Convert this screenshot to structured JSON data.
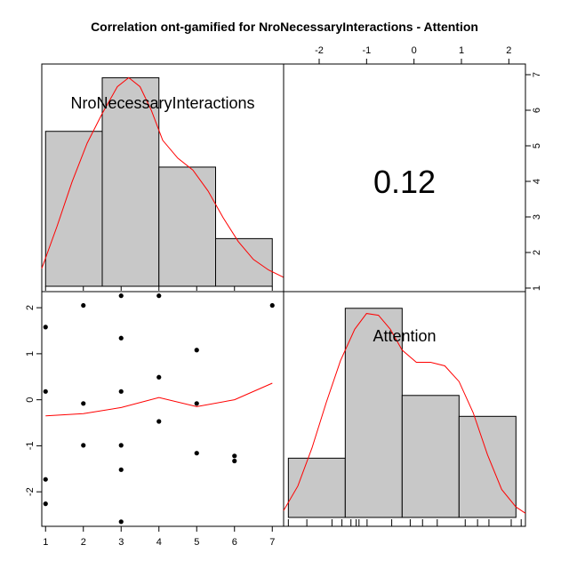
{
  "chart_data": {
    "type": "scatter",
    "title": "Correlation ont-gamified for NroNecessaryInteractions - Attention",
    "variables": [
      "NroNecessaryInteractions",
      "Attention"
    ],
    "correlation_label": "0.12",
    "x_ticks": [
      "1",
      "2",
      "3",
      "4",
      "5",
      "6",
      "7"
    ],
    "y_ticks": [
      "-2",
      "-1",
      "0",
      "1",
      "2"
    ],
    "top_ticks": [
      "-2",
      "-1",
      "0",
      "1",
      "2"
    ],
    "right_ticks": [
      "1",
      "2",
      "3",
      "4",
      "5",
      "6",
      "7"
    ],
    "xlim": [
      0.9,
      7.3
    ],
    "ylim": [
      -2.75,
      2.35
    ],
    "scatter_points": [
      {
        "x": 1,
        "y": 1.58
      },
      {
        "x": 1,
        "y": 0.18
      },
      {
        "x": 1,
        "y": -1.73
      },
      {
        "x": 1,
        "y": -2.26
      },
      {
        "x": 2,
        "y": 2.05
      },
      {
        "x": 2,
        "y": -0.08
      },
      {
        "x": 2,
        "y": -0.99
      },
      {
        "x": 3,
        "y": 2.26
      },
      {
        "x": 3,
        "y": 1.34
      },
      {
        "x": 3,
        "y": 0.18
      },
      {
        "x": 3,
        "y": -0.99
      },
      {
        "x": 3,
        "y": -1.52
      },
      {
        "x": 3,
        "y": -2.65
      },
      {
        "x": 4,
        "y": 2.26
      },
      {
        "x": 4,
        "y": 0.49
      },
      {
        "x": 4,
        "y": -0.47
      },
      {
        "x": 5,
        "y": 1.08
      },
      {
        "x": 5,
        "y": -0.08
      },
      {
        "x": 5,
        "y": -1.16
      },
      {
        "x": 6,
        "y": -1.22
      },
      {
        "x": 6,
        "y": -1.33
      },
      {
        "x": 7,
        "y": 2.05
      }
    ],
    "smooth_line": [
      {
        "x": 1,
        "y": -0.35
      },
      {
        "x": 2,
        "y": -0.3
      },
      {
        "x": 3,
        "y": -0.17
      },
      {
        "x": 4,
        "y": 0.05
      },
      {
        "x": 5,
        "y": -0.15
      },
      {
        "x": 6,
        "y": 0.0
      },
      {
        "x": 7,
        "y": 0.36
      }
    ],
    "hist1": {
      "breaks": [
        1,
        2.5,
        4,
        5.5,
        7
      ],
      "counts": [
        5.2,
        7.0,
        4.0,
        1.6
      ],
      "ylim": [
        0,
        7.4
      ],
      "density": [
        {
          "x": 0.9,
          "y": 0.6
        },
        {
          "x": 1.3,
          "y": 2.0
        },
        {
          "x": 1.7,
          "y": 3.5
        },
        {
          "x": 2.1,
          "y": 4.8
        },
        {
          "x": 2.5,
          "y": 5.8
        },
        {
          "x": 2.9,
          "y": 6.7
        },
        {
          "x": 3.2,
          "y": 7.0
        },
        {
          "x": 3.5,
          "y": 6.7
        },
        {
          "x": 3.8,
          "y": 5.9
        },
        {
          "x": 4.1,
          "y": 4.9
        },
        {
          "x": 4.5,
          "y": 4.3
        },
        {
          "x": 4.9,
          "y": 3.9
        },
        {
          "x": 5.3,
          "y": 3.2
        },
        {
          "x": 5.7,
          "y": 2.3
        },
        {
          "x": 6.1,
          "y": 1.5
        },
        {
          "x": 6.5,
          "y": 0.9
        },
        {
          "x": 6.9,
          "y": 0.55
        },
        {
          "x": 7.3,
          "y": 0.3
        }
      ],
      "rug": [
        1,
        2,
        3,
        4,
        5,
        6,
        7
      ]
    },
    "hist2": {
      "breaks": [
        -2.65,
        -1.45,
        -0.25,
        0.95,
        2.15
      ],
      "counts": [
        1.7,
        6.0,
        3.5,
        2.9
      ],
      "ylim": [
        0,
        6.3
      ],
      "density": [
        {
          "x": -2.75,
          "y": 0.2
        },
        {
          "x": -2.45,
          "y": 0.9
        },
        {
          "x": -2.15,
          "y": 2.0
        },
        {
          "x": -1.85,
          "y": 3.3
        },
        {
          "x": -1.55,
          "y": 4.5
        },
        {
          "x": -1.25,
          "y": 5.4
        },
        {
          "x": -1.0,
          "y": 5.85
        },
        {
          "x": -0.75,
          "y": 5.8
        },
        {
          "x": -0.5,
          "y": 5.4
        },
        {
          "x": -0.25,
          "y": 4.8
        },
        {
          "x": 0.05,
          "y": 4.45
        },
        {
          "x": 0.35,
          "y": 4.45
        },
        {
          "x": 0.65,
          "y": 4.35
        },
        {
          "x": 0.95,
          "y": 3.9
        },
        {
          "x": 1.25,
          "y": 3.0
        },
        {
          "x": 1.55,
          "y": 1.8
        },
        {
          "x": 1.85,
          "y": 0.8
        },
        {
          "x": 2.15,
          "y": 0.3
        },
        {
          "x": 2.35,
          "y": 0.12
        }
      ],
      "rug": [
        -2.65,
        -2.26,
        -1.73,
        -1.52,
        -1.33,
        -1.22,
        -1.16,
        -0.99,
        -0.47,
        -0.08,
        0.18,
        0.49,
        1.08,
        1.34,
        1.58,
        2.05,
        2.26
      ]
    }
  }
}
